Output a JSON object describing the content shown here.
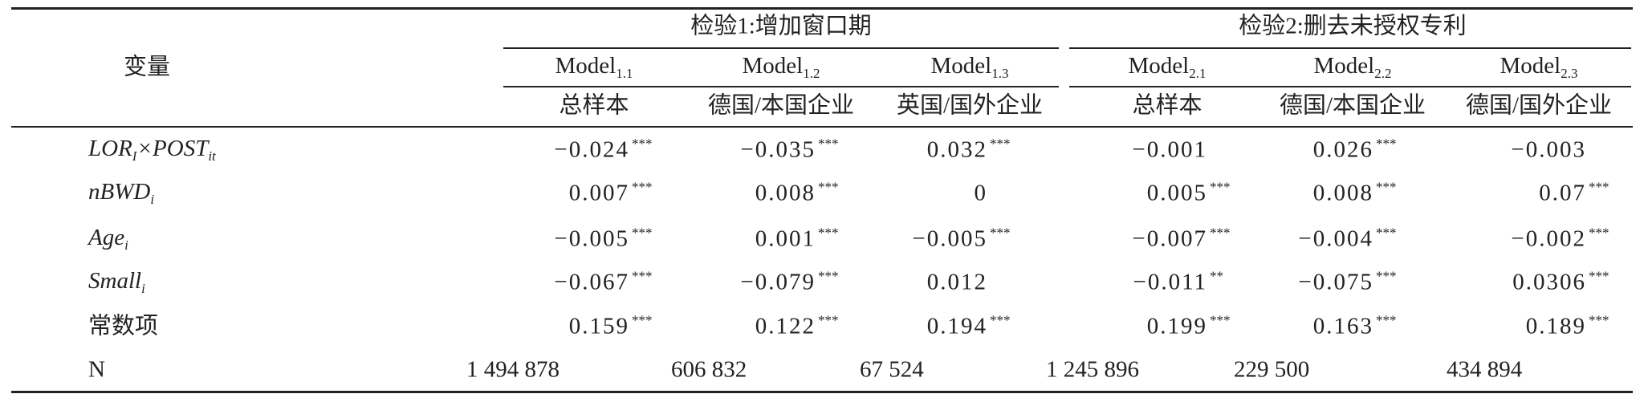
{
  "table": {
    "corner": "变量",
    "groups": [
      "检验1:增加窗口期",
      "检验2:删去未授权专利"
    ],
    "models": [
      {
        "name": "Model",
        "sub": "1.1",
        "sample": "总样本"
      },
      {
        "name": "Model",
        "sub": "1.2",
        "sample": "德国/本国企业"
      },
      {
        "name": "Model",
        "sub": "1.3",
        "sample": "英国/国外企业"
      },
      {
        "name": "Model",
        "sub": "2.1",
        "sample": "总样本"
      },
      {
        "name": "Model",
        "sub": "2.2",
        "sample": "德国/本国企业"
      },
      {
        "name": "Model",
        "sub": "2.3",
        "sample": "德国/国外企业"
      }
    ],
    "rows": [
      {
        "label": [
          {
            "text": "LOR",
            "sub": "I"
          },
          {
            "text": "×POST",
            "sub": "it"
          }
        ],
        "cells": [
          {
            "value": "−0.024",
            "stars": "***"
          },
          {
            "value": "−0.035",
            "stars": "***"
          },
          {
            "value": "0.032",
            "stars": "***"
          },
          {
            "value": "−0.001"
          },
          {
            "value": "0.026",
            "stars": "***"
          },
          {
            "value": "−0.003"
          }
        ]
      },
      {
        "label": [
          {
            "text": "nBWD",
            "sub": "i"
          }
        ],
        "cells": [
          {
            "value": "0.007",
            "stars": "***"
          },
          {
            "value": "0.008",
            "stars": "***"
          },
          {
            "value": "0"
          },
          {
            "value": "0.005",
            "stars": "***"
          },
          {
            "value": "0.008",
            "stars": "***"
          },
          {
            "value": "0.07",
            "stars": "***"
          }
        ]
      },
      {
        "label": [
          {
            "text": "Age",
            "sub": "i"
          }
        ],
        "cells": [
          {
            "value": "−0.005",
            "stars": "***"
          },
          {
            "value": "0.001",
            "stars": "***"
          },
          {
            "value": "−0.005",
            "stars": "***"
          },
          {
            "value": "−0.007",
            "stars": "***"
          },
          {
            "value": "−0.004",
            "stars": "***"
          },
          {
            "value": "−0.002",
            "stars": "***"
          }
        ]
      },
      {
        "label": [
          {
            "text": "Small",
            "sub": "i"
          }
        ],
        "cells": [
          {
            "value": "−0.067",
            "stars": "***"
          },
          {
            "value": "−0.079",
            "stars": "***"
          },
          {
            "value": "0.012"
          },
          {
            "value": "−0.011",
            "stars": "**"
          },
          {
            "value": "−0.075",
            "stars": "***"
          },
          {
            "value": "0.0306",
            "stars": "***"
          }
        ]
      },
      {
        "label": [
          {
            "text": "常数项"
          }
        ],
        "cells": [
          {
            "value": "0.159",
            "stars": "***"
          },
          {
            "value": "0.122",
            "stars": "***"
          },
          {
            "value": "0.194",
            "stars": "***"
          },
          {
            "value": "0.199",
            "stars": "***"
          },
          {
            "value": "0.163",
            "stars": "***"
          },
          {
            "value": "0.189",
            "stars": "***"
          }
        ]
      },
      {
        "label": [
          {
            "text": "N"
          }
        ],
        "cells": [
          {
            "value": "1 494 878"
          },
          {
            "value": "606 832"
          },
          {
            "value": "67 524"
          },
          {
            "value": "1 245 896"
          },
          {
            "value": "229 500"
          },
          {
            "value": "434 894"
          }
        ]
      }
    ]
  }
}
